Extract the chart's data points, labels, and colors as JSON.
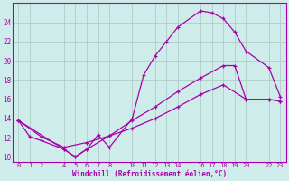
{
  "xlabel": "Windchill (Refroidissement éolien,°C)",
  "bg_color": "#ceecea",
  "grid_color": "#b0ccc8",
  "line_color": "#aa00aa",
  "xlim": [
    -0.5,
    23.5
  ],
  "ylim": [
    9.5,
    26.0
  ],
  "yticks": [
    10,
    12,
    14,
    16,
    18,
    20,
    22,
    24
  ],
  "x_tick_positions": [
    0,
    1,
    2,
    4,
    5,
    6,
    7,
    8,
    10,
    11,
    12,
    13,
    14,
    16,
    17,
    18,
    19,
    20,
    22,
    23
  ],
  "x_tick_labels": [
    "0",
    "1",
    "2",
    "4",
    "5",
    "6",
    "7",
    "8",
    "10",
    "11",
    "12",
    "13",
    "14",
    "16",
    "17",
    "18",
    "19",
    "20",
    "22",
    "23"
  ],
  "line1_x": [
    0,
    1,
    2,
    4,
    5,
    6,
    7,
    8,
    10,
    11,
    12,
    13,
    14,
    16,
    17,
    18,
    19,
    20,
    22,
    23
  ],
  "line1_y": [
    13.8,
    12.1,
    11.7,
    10.8,
    10.0,
    10.8,
    12.3,
    11.0,
    14.0,
    18.5,
    20.5,
    22.0,
    23.5,
    25.2,
    25.0,
    24.4,
    23.0,
    21.0,
    19.3,
    16.3
  ],
  "line2_x": [
    0,
    4,
    5,
    6,
    8,
    10,
    12,
    14,
    16,
    18,
    19,
    20,
    22,
    23
  ],
  "line2_y": [
    13.8,
    10.8,
    10.0,
    10.8,
    12.2,
    13.8,
    15.2,
    16.8,
    18.2,
    19.5,
    19.5,
    16.0,
    16.0,
    15.8
  ],
  "line3_x": [
    0,
    2,
    4,
    6,
    8,
    10,
    12,
    14,
    16,
    18,
    20,
    22,
    23
  ],
  "line3_y": [
    13.8,
    12.1,
    11.0,
    11.5,
    12.2,
    13.0,
    14.0,
    15.2,
    16.5,
    17.5,
    16.0,
    16.0,
    15.8
  ]
}
